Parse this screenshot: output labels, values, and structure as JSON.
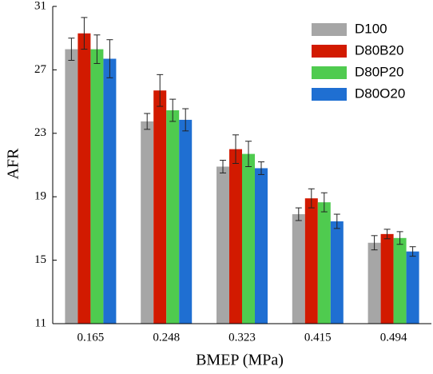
{
  "chart_data": {
    "type": "bar",
    "x_label": "BMEP (MPa)",
    "y_label": "AFR",
    "categories": [
      "0.165",
      "0.248",
      "0.323",
      "0.415",
      "0.494"
    ],
    "series": [
      {
        "name": "D100",
        "color": "#a6a6a6",
        "values": [
          28.3,
          23.75,
          20.9,
          17.9,
          16.1
        ],
        "errors": [
          0.7,
          0.5,
          0.4,
          0.4,
          0.45
        ]
      },
      {
        "name": "D80B20",
        "color": "#d21a00",
        "values": [
          29.3,
          25.7,
          22.0,
          18.9,
          16.65
        ],
        "errors": [
          1.0,
          1.0,
          0.9,
          0.6,
          0.3
        ]
      },
      {
        "name": "D80P20",
        "color": "#4fcb4f",
        "values": [
          28.3,
          24.45,
          21.7,
          18.65,
          16.4
        ],
        "errors": [
          0.9,
          0.7,
          0.8,
          0.6,
          0.4
        ]
      },
      {
        "name": "D80O20",
        "color": "#1f6fd2",
        "values": [
          27.7,
          23.85,
          20.8,
          17.45,
          15.55
        ],
        "errors": [
          1.2,
          0.7,
          0.4,
          0.45,
          0.3
        ]
      }
    ],
    "ylim": [
      11,
      31
    ],
    "yticks": [
      11,
      15,
      19,
      23,
      27,
      31
    ],
    "legend": "upper right"
  }
}
